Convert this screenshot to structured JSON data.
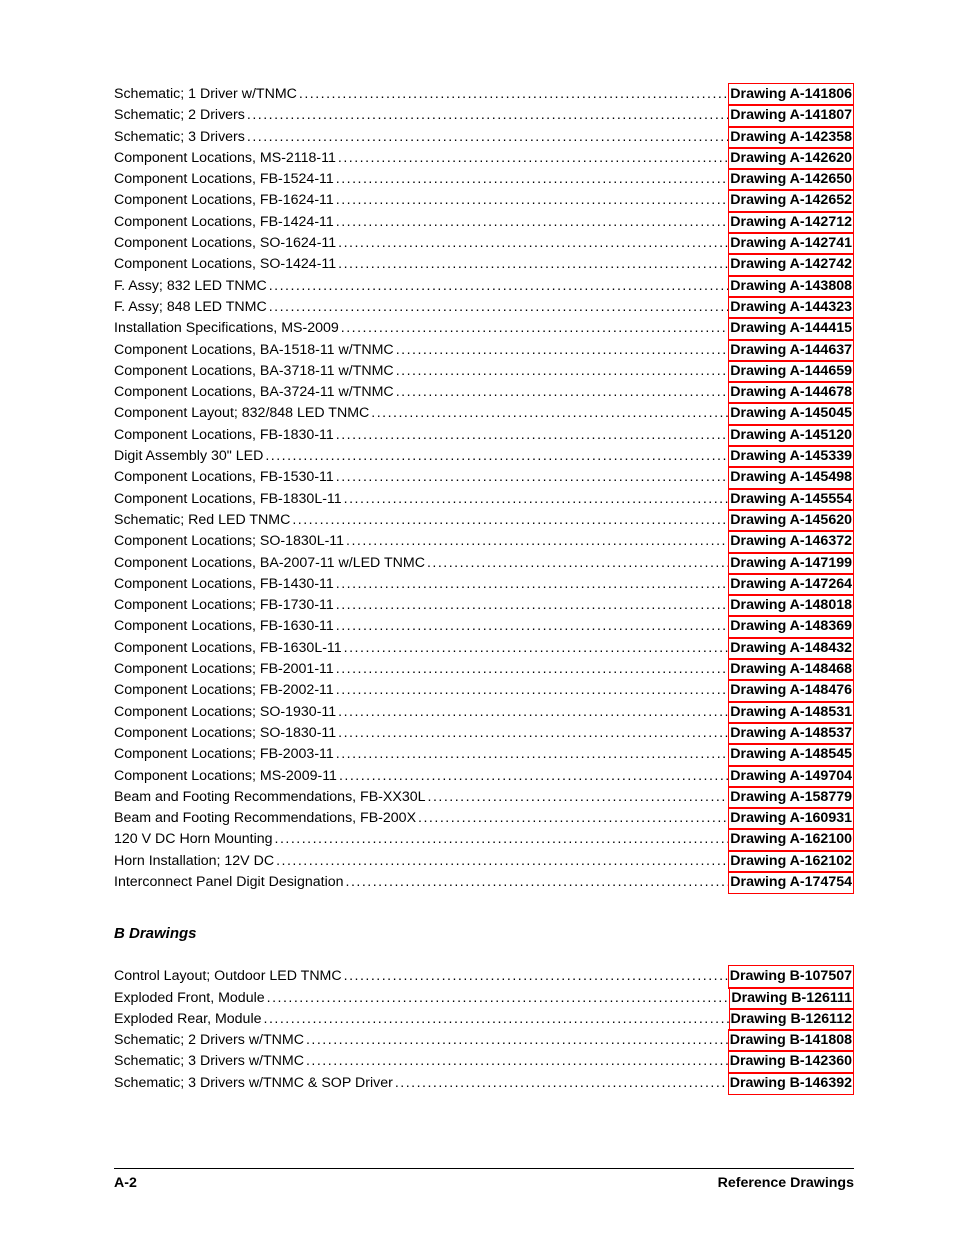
{
  "a_drawings": [
    {
      "title": "Schematic; 1 Driver w/TNMC",
      "ref": "Drawing A-141806"
    },
    {
      "title": "Schematic; 2 Drivers",
      "ref": "Drawing A-141807"
    },
    {
      "title": "Schematic; 3 Drivers",
      "ref": "Drawing A-142358"
    },
    {
      "title": "Component Locations, MS-2118-11",
      "ref": "Drawing A-142620"
    },
    {
      "title": "Component Locations, FB-1524-11",
      "ref": "Drawing A-142650"
    },
    {
      "title": "Component Locations, FB-1624-11",
      "ref": "Drawing A-142652"
    },
    {
      "title": "Component Locations, FB-1424-11",
      "ref": "Drawing A-142712"
    },
    {
      "title": "Component Locations, SO-1624-11",
      "ref": "Drawing A-142741"
    },
    {
      "title": "Component Locations, SO-1424-11",
      "ref": "Drawing A-142742"
    },
    {
      "title": "F. Assy; 832 LED TNMC",
      "ref": "Drawing A-143808"
    },
    {
      "title": "F. Assy; 848 LED TNMC",
      "ref": "Drawing A-144323"
    },
    {
      "title": "Installation Specifications, MS-2009",
      "ref": "Drawing A-144415"
    },
    {
      "title": "Component Locations, BA-1518-11 w/TNMC",
      "ref": "Drawing A-144637"
    },
    {
      "title": "Component Locations, BA-3718-11 w/TNMC",
      "ref": "Drawing A-144659"
    },
    {
      "title": "Component Locations, BA-3724-11 w/TNMC",
      "ref": "Drawing A-144678"
    },
    {
      "title": "Component Layout; 832/848 LED TNMC",
      "ref": "Drawing A-145045"
    },
    {
      "title": "Component Locations, FB-1830-11",
      "ref": "Drawing A-145120"
    },
    {
      "title": "Digit Assembly 30\" LED",
      "ref": "Drawing A-145339"
    },
    {
      "title": "Component Locations, FB-1530-11",
      "ref": "Drawing A-145498"
    },
    {
      "title": "Component Locations, FB-1830L-11",
      "ref": "Drawing A-145554"
    },
    {
      "title": "Schematic; Red LED TNMC",
      "ref": "Drawing A-145620"
    },
    {
      "title": "Component Locations; SO-1830L-11",
      "ref": "Drawing A-146372"
    },
    {
      "title": "Component Locations, BA-2007-11 w/LED TNMC",
      "ref": "Drawing A-147199"
    },
    {
      "title": "Component Locations, FB-1430-11",
      "ref": "Drawing A-147264"
    },
    {
      "title": "Component Locations; FB-1730-11",
      "ref": "Drawing A-148018"
    },
    {
      "title": "Component Locations, FB-1630-11",
      "ref": "Drawing A-148369"
    },
    {
      "title": "Component Locations, FB-1630L-11",
      "ref": "Drawing A-148432"
    },
    {
      "title": "Component Locations; FB-2001-11",
      "ref": "Drawing A-148468"
    },
    {
      "title": "Component Locations; FB-2002-11",
      "ref": "Drawing A-148476"
    },
    {
      "title": "Component Locations; SO-1930-11",
      "ref": "Drawing A-148531"
    },
    {
      "title": "Component Locations; SO-1830-11",
      "ref": "Drawing A-148537"
    },
    {
      "title": "Component Locations; FB-2003-11",
      "ref": "Drawing A-148545"
    },
    {
      "title": "Component Locations; MS-2009-11",
      "ref": "Drawing A-149704"
    },
    {
      "title": "Beam and Footing Recommendations, FB-XX30L",
      "ref": "Drawing A-158779"
    },
    {
      "title": "Beam and Footing Recommendations, FB-200X",
      "ref": "Drawing A-160931"
    },
    {
      "title": "120 V DC Horn Mounting",
      "ref": "Drawing A-162100"
    },
    {
      "title": "Horn Installation; 12V DC",
      "ref": "Drawing A-162102"
    },
    {
      "title": "Interconnect Panel Digit Designation",
      "ref": "Drawing A-174754"
    }
  ],
  "b_heading": "B Drawings",
  "b_drawings": [
    {
      "title": "Control Layout; Outdoor LED TNMC",
      "ref": "Drawing B-107507"
    },
    {
      "title": "Exploded Front, Module",
      "ref": "Drawing B-126111"
    },
    {
      "title": "Exploded Rear, Module",
      "ref": "Drawing B-126112"
    },
    {
      "title": "Schematic; 2 Drivers w/TNMC",
      "ref": "Drawing B-141808"
    },
    {
      "title": "Schematic; 3 Drivers w/TNMC",
      "ref": "Drawing B-142360"
    },
    {
      "title": "Schematic; 3 Drivers w/TNMC & SOP Driver",
      "ref": "Drawing B-146392"
    }
  ],
  "footer": {
    "page": "A-2",
    "section": "Reference Drawings"
  },
  "colors": {
    "text": "#000000",
    "highlight_border": "#ff0000",
    "background": "#ffffff"
  },
  "typography": {
    "body_fontsize": 14.2,
    "heading_fontsize": 15,
    "line_height": 1.5,
    "font_family": "Arial"
  }
}
